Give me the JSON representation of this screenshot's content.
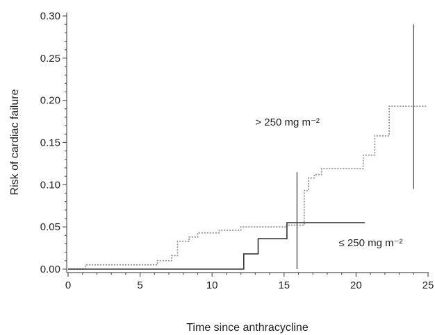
{
  "chart_data": {
    "type": "line",
    "xlabel": "Time since anthracycline",
    "ylabel": "Risk of cardiac failure",
    "xlim": [
      0,
      25
    ],
    "ylim": [
      0,
      0.3
    ],
    "x_ticks": [
      "0",
      "5",
      "10",
      "15",
      "20",
      "25"
    ],
    "y_ticks": [
      "0.00",
      "0.05",
      "0.10",
      "0.15",
      "0.20",
      "0.25",
      "0.30"
    ],
    "grid": false,
    "series": [
      {
        "label": "> 250 mg m⁻²",
        "style": "dotted",
        "color": "#9a9a9a",
        "step_points": [
          [
            0,
            0
          ],
          [
            1.2,
            0
          ],
          [
            1.2,
            0.005
          ],
          [
            6.2,
            0.005
          ],
          [
            6.2,
            0.01
          ],
          [
            7.2,
            0.01
          ],
          [
            7.2,
            0.016
          ],
          [
            7.6,
            0.016
          ],
          [
            7.6,
            0.033
          ],
          [
            8.4,
            0.033
          ],
          [
            8.4,
            0.038
          ],
          [
            9,
            0.038
          ],
          [
            9,
            0.043
          ],
          [
            10.5,
            0.043
          ],
          [
            10.5,
            0.046
          ],
          [
            12,
            0.046
          ],
          [
            12,
            0.05
          ],
          [
            15.2,
            0.05
          ],
          [
            15.2,
            0.052
          ],
          [
            16.4,
            0.052
          ],
          [
            16.4,
            0.093
          ],
          [
            16.7,
            0.093
          ],
          [
            16.7,
            0.108
          ],
          [
            17.1,
            0.108
          ],
          [
            17.1,
            0.112
          ],
          [
            17.6,
            0.112
          ],
          [
            17.6,
            0.119
          ],
          [
            20.5,
            0.119
          ],
          [
            20.5,
            0.135
          ],
          [
            21.3,
            0.135
          ],
          [
            21.3,
            0.158
          ],
          [
            22.3,
            0.158
          ],
          [
            22.3,
            0.193
          ],
          [
            24.9,
            0.193
          ]
        ]
      },
      {
        "label": "≤ 250 mg m⁻²",
        "style": "solid",
        "color": "#333333",
        "step_points": [
          [
            0,
            0
          ],
          [
            12.2,
            0
          ],
          [
            12.2,
            0.018
          ],
          [
            13.2,
            0.018
          ],
          [
            13.2,
            0.036
          ],
          [
            15.2,
            0.036
          ],
          [
            15.2,
            0.055
          ],
          [
            20.6,
            0.055
          ]
        ]
      }
    ],
    "error_bars": [
      {
        "x": 15.9,
        "y_low": 0.0,
        "y_high": 0.115
      },
      {
        "x": 24.0,
        "y_low": 0.095,
        "y_high": 0.29
      }
    ],
    "annotations": [
      {
        "text": "> 250 mg m⁻²",
        "x": 13,
        "y": 0.17
      },
      {
        "text": "≤ 250 mg m⁻²",
        "x": 18.8,
        "y": 0.027
      }
    ]
  }
}
